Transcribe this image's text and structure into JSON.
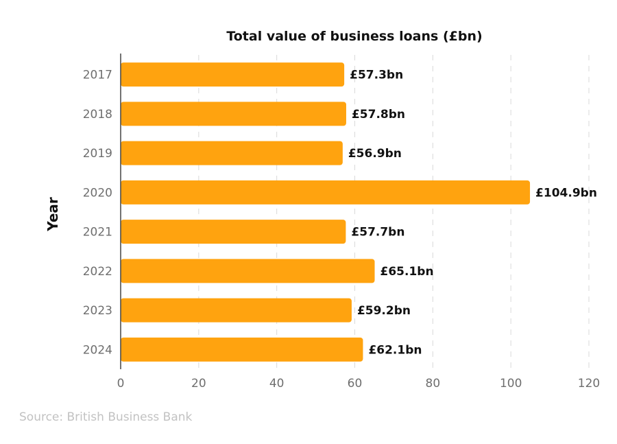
{
  "chart_data": {
    "type": "bar",
    "orientation": "horizontal",
    "title": "Total value of business loans (£bn)",
    "xlabel": "",
    "ylabel": "Year",
    "categories": [
      "2017",
      "2018",
      "2019",
      "2020",
      "2021",
      "2022",
      "2023",
      "2024"
    ],
    "values": [
      57.3,
      57.8,
      56.9,
      104.9,
      57.7,
      65.1,
      59.2,
      62.1
    ],
    "data_labels": [
      "£57.3bn",
      "£57.8bn",
      "£56.9bn",
      "£104.9bn",
      "£57.7bn",
      "£65.1bn",
      "£59.2bn",
      "£62.1bn"
    ],
    "xlim": [
      0,
      120
    ],
    "xticks": [
      0,
      20,
      40,
      60,
      80,
      100,
      120
    ],
    "grid": "vertical-dashed",
    "legend": "none",
    "bar_color": "#FFA30F"
  },
  "source": "Source: British Business Bank"
}
